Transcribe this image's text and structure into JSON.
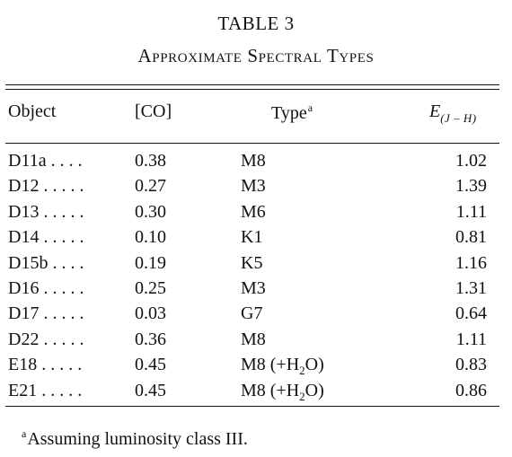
{
  "table": {
    "number": "TABLE 3",
    "caption": "Approximate Spectral Types",
    "headers": {
      "object": "Object",
      "co": "[CO]",
      "type": "Type",
      "type_note": "a",
      "e_main": "E",
      "e_sub": "(J – H)"
    },
    "rows": [
      {
        "object": "D11a . . . .",
        "co": "0.38",
        "type": "M8",
        "e": "1.02"
      },
      {
        "object": "D12 . . . . .",
        "co": "0.27",
        "type": "M3",
        "e": "1.39"
      },
      {
        "object": "D13 . . . . .",
        "co": "0.30",
        "type": "M6",
        "e": "1.11"
      },
      {
        "object": "D14 . . . . .",
        "co": "0.10",
        "type": "K1",
        "e": "0.81"
      },
      {
        "object": "D15b . . . .",
        "co": "0.19",
        "type": "K5",
        "e": "1.16"
      },
      {
        "object": "D16 . . . . .",
        "co": "0.25",
        "type": "M3",
        "e": "1.31"
      },
      {
        "object": "D17 . . . . .",
        "co": "0.03",
        "type": "G7",
        "e": "0.64"
      },
      {
        "object": "D22 . . . . .",
        "co": "0.36",
        "type": "M8",
        "e": "1.11"
      },
      {
        "object": "E18 . . . . .",
        "co": "0.45",
        "type": "M8 (+H",
        "type_sub": "2",
        "type_tail": "O)",
        "e": "0.83"
      },
      {
        "object": "E21 . . . . .",
        "co": "0.45",
        "type": "M8 (+H",
        "type_sub": "2",
        "type_tail": "O)",
        "e": "0.86"
      }
    ],
    "footnote": {
      "mark": "a",
      "text": "Assuming luminosity class III."
    }
  }
}
